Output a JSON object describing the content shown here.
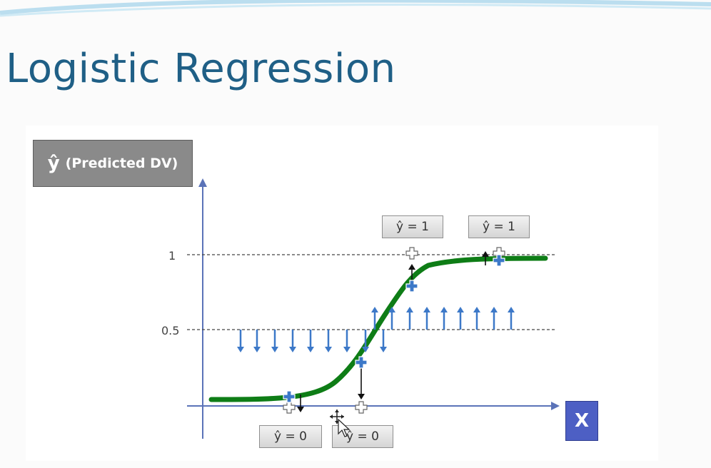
{
  "slide": {
    "title": "Logistic Regression",
    "y_axis_label_symbol": "ŷ",
    "y_axis_label_text": "(Predicted DV)",
    "x_axis_label": "X"
  },
  "chart_data": {
    "type": "line",
    "y_ticks": [
      "1",
      "0.5"
    ],
    "threshold": 0.5,
    "curve": "sigmoid",
    "callouts": [
      {
        "text": "ŷ = 0"
      },
      {
        "text": "ŷ = 0"
      },
      {
        "text": "ŷ = 1"
      },
      {
        "text": "ŷ = 1"
      }
    ]
  },
  "colors": {
    "title": "#1f5f86",
    "axis": "#5b73b8",
    "curve": "#0e7d16",
    "arrows": "#3c78c8",
    "point": "#3c78c8",
    "x_box": "#4d5fc4",
    "y_box": "#8a8a8a"
  }
}
